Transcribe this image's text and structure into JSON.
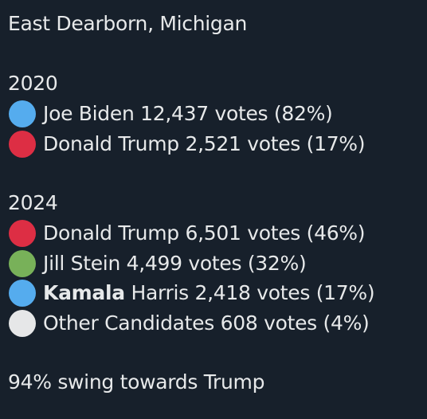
{
  "post": {
    "location": "East Dearborn, Michigan",
    "sections": [
      {
        "year": "2020",
        "lines": [
          {
            "color": "#55acee",
            "name": "Joe Biden",
            "result": "12,437 votes (82%)"
          },
          {
            "color": "#dd2e44",
            "name": "Donald Trump",
            "result": "2,521 votes (17%)"
          }
        ]
      },
      {
        "year": "2024",
        "lines": [
          {
            "color": "#dd2e44",
            "name": "Donald Trump",
            "result": "6,501 votes (46%)"
          },
          {
            "color": "#78b159",
            "name": "Jill Stein",
            "result": "4,499 votes (32%)"
          },
          {
            "color": "#55acee",
            "name_bold": "Kamala",
            "name": "Harris",
            "result": "2,418 votes (17%)"
          },
          {
            "color": "#e6e7e8",
            "name": "Other Candidates",
            "result": "608 votes (4%)"
          }
        ]
      }
    ],
    "footer": "94% swing towards Trump"
  }
}
